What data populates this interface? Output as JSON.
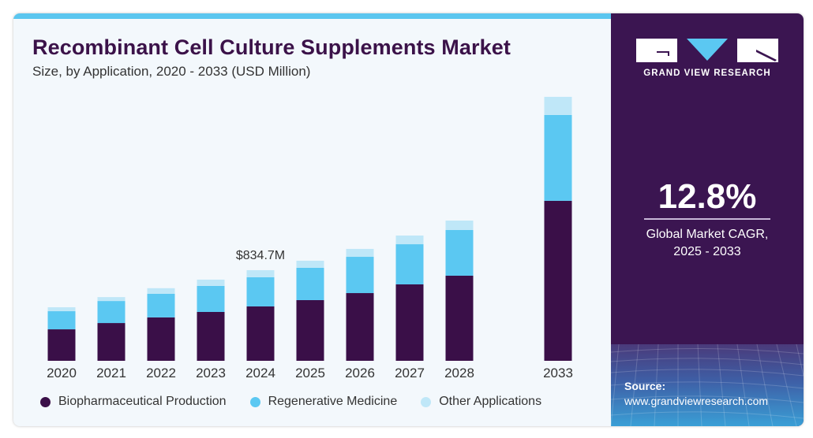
{
  "header": {
    "title": "Recombinant Cell Culture Supplements Market",
    "subtitle": "Size, by Application, 2020 - 2033 (USD Million)"
  },
  "sidebar": {
    "brand": "GRAND VIEW RESEARCH",
    "cagr_value": "12.8%",
    "cagr_label_line1": "Global Market CAGR,",
    "cagr_label_line2": "2025 - 2033",
    "source_label": "Source:",
    "source_url": "www.grandviewresearch.com"
  },
  "colors": {
    "biopharmaceutical": "#3a0f48",
    "regenerative": "#5bc8f2",
    "other": "#bfe7f8",
    "title": "#3b1249",
    "sidebar": "#3b1551",
    "accent_bar": "#5bc6ef"
  },
  "chart_data": {
    "type": "bar",
    "stacked": true,
    "title": "Recombinant Cell Culture Supplements Market",
    "subtitle": "Size, by Application, 2020 - 2033 (USD Million)",
    "xlabel": "",
    "ylabel": "USD Million",
    "categories": [
      "2020",
      "2021",
      "2022",
      "2023",
      "2024",
      "2025",
      "2026",
      "2027",
      "2028",
      "2033"
    ],
    "series": [
      {
        "name": "Biopharmaceutical Production",
        "values": [
          290,
          348,
          400,
          450,
          501,
          559,
          624,
          704,
          784,
          1474
        ]
      },
      {
        "name": "Regenerative Medicine",
        "values": [
          167,
          203,
          218,
          240,
          269,
          298,
          334,
          370,
          421,
          791
        ]
      },
      {
        "name": "Other Applications",
        "values": [
          36,
          36,
          51,
          58,
          65,
          65,
          73,
          80,
          87,
          167
        ]
      }
    ],
    "annotations": [
      {
        "category": "2024",
        "text": "$834.7M"
      }
    ],
    "legend": [
      "Biopharmaceutical Production",
      "Regenerative Medicine",
      "Other Applications"
    ],
    "legend_position": "bottom",
    "grid": false,
    "ylim": [
      0,
      2500
    ]
  }
}
